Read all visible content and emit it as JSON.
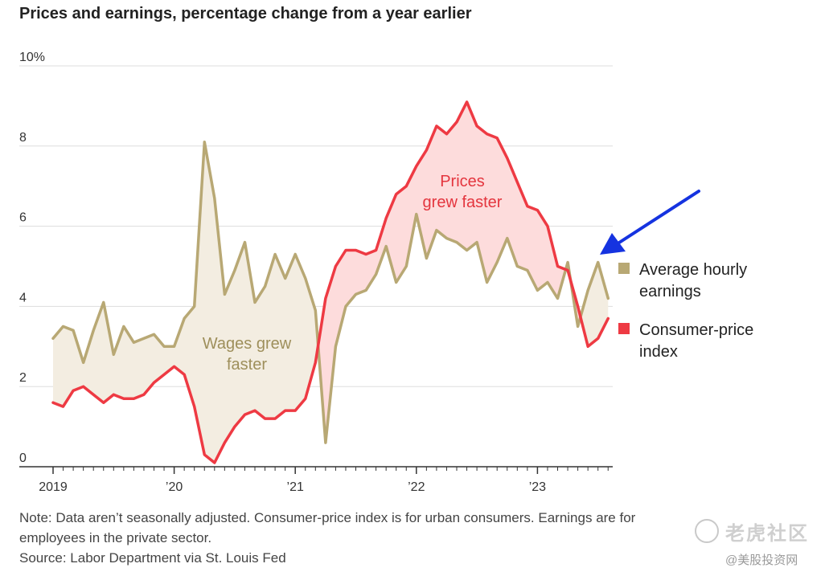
{
  "chart_data": {
    "type": "line",
    "title": "Prices and earnings, percentage change from a year earlier",
    "xlabel": "",
    "ylabel": "",
    "ylim": [
      0,
      10
    ],
    "yticks": [
      0,
      2,
      4,
      6,
      8,
      10
    ],
    "ytick_labels": [
      "0",
      "2",
      "4",
      "6",
      "8",
      "10%"
    ],
    "x_tick_labels": [
      "2019",
      "’20",
      "’21",
      "’22",
      "’23"
    ],
    "x_tick_months": [
      0,
      12,
      24,
      36,
      48
    ],
    "grid": true,
    "series": [
      {
        "name": "Average hourly earnings",
        "color": "#b8a874",
        "values": [
          3.2,
          3.5,
          3.4,
          2.6,
          3.4,
          4.1,
          2.8,
          3.5,
          3.1,
          3.2,
          3.3,
          3.0,
          3.0,
          3.7,
          4.0,
          8.1,
          6.7,
          4.3,
          4.9,
          5.6,
          4.1,
          4.5,
          5.3,
          4.7,
          5.3,
          4.7,
          3.9,
          0.6,
          3.0,
          4.0,
          4.3,
          4.4,
          4.8,
          5.5,
          4.6,
          5.0,
          6.3,
          5.2,
          5.9,
          5.7,
          5.6,
          5.4,
          5.6,
          4.6,
          5.1,
          5.7,
          5.0,
          4.9,
          4.4,
          4.6,
          4.2,
          5.1,
          3.5,
          4.4,
          5.1,
          4.2
        ]
      },
      {
        "name": "Consumer-price index",
        "color": "#ee3a43",
        "values": [
          1.6,
          1.5,
          1.9,
          2.0,
          1.8,
          1.6,
          1.8,
          1.7,
          1.7,
          1.8,
          2.1,
          2.3,
          2.5,
          2.3,
          1.5,
          0.3,
          0.1,
          0.6,
          1.0,
          1.3,
          1.4,
          1.2,
          1.2,
          1.4,
          1.4,
          1.7,
          2.6,
          4.2,
          5.0,
          5.4,
          5.4,
          5.3,
          5.4,
          6.2,
          6.8,
          7.0,
          7.5,
          7.9,
          8.5,
          8.3,
          8.6,
          9.1,
          8.5,
          8.3,
          8.2,
          7.7,
          7.1,
          6.5,
          6.4,
          6.0,
          5.0,
          4.9,
          4.0,
          3.0,
          3.2,
          3.7
        ]
      }
    ],
    "annotations": {
      "wages": [
        "Wages grew",
        "faster"
      ],
      "prices": [
        "Prices",
        "grew faster"
      ]
    },
    "legend_placement": "right",
    "legend": [
      {
        "lines": [
          "Average hourly",
          "earnings"
        ],
        "color": "#b8a874"
      },
      {
        "lines": [
          "Consumer-price",
          "index"
        ],
        "color": "#ee3a43"
      }
    ],
    "fill_colors": {
      "wages_faster": "#f3ede1",
      "prices_faster": "#fddcdc"
    },
    "arrow_color": "#1533e0"
  },
  "footnote": {
    "line1": "Note: Data aren’t seasonally adjusted. Consumer-price index is for urban consumers. Earnings are for",
    "line2": "employees in the private sector.",
    "line3": "Source: Labor Department via St. Louis Fed"
  },
  "watermark": {
    "main": "老虎社区",
    "sub": "@美股投资网"
  }
}
